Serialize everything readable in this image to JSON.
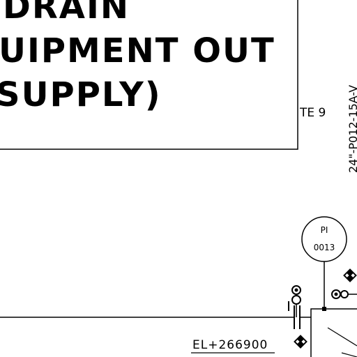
{
  "note_box": {
    "lines": [
      "DRAIN",
      "UIPMENT OUT",
      "SUPPLY)"
    ]
  },
  "note_reference": "TE 9",
  "line_number": "24\"-P012-15A-V",
  "instrument": {
    "tag_letters": "PI",
    "tag_number": "0013"
  },
  "elevation": "EL+266900",
  "colors": {
    "ink": "#000000",
    "paper": "#ffffff"
  }
}
